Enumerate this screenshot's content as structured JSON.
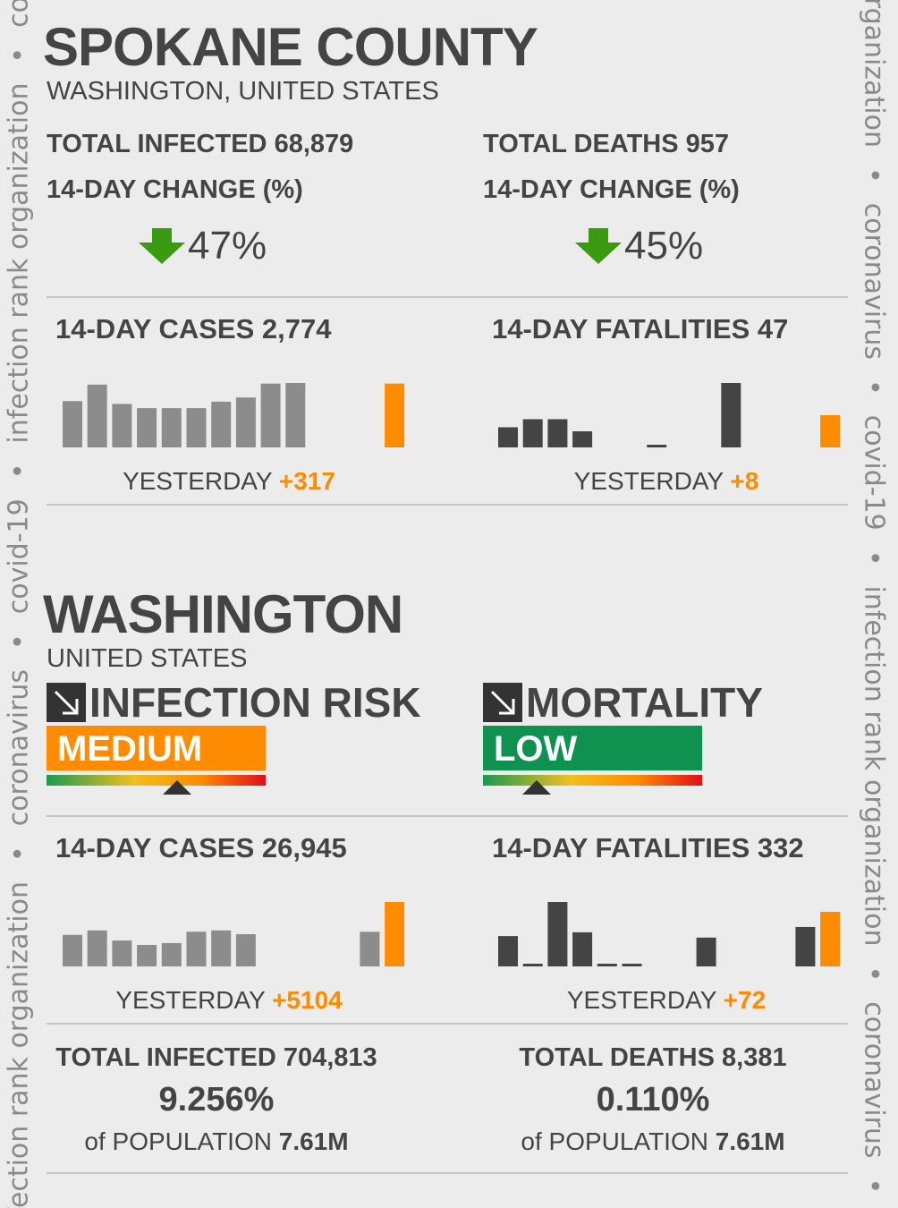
{
  "watermark": {
    "parts": [
      "covid-19",
      "coronavirus",
      "infection rank organization"
    ],
    "separator": "•"
  },
  "county": {
    "title": "SPOKANE COUNTY",
    "subtitle": "WASHINGTON, UNITED STATES",
    "infected": {
      "label": "TOTAL INFECTED",
      "value": "68,879",
      "change_label": "14-DAY CHANGE (%)",
      "change": "47%"
    },
    "deaths": {
      "label": "TOTAL DEATHS",
      "value": "957",
      "change_label": "14-DAY CHANGE (%)",
      "change": "45%"
    },
    "cases": {
      "label": "14-DAY CASES",
      "value": "2,774",
      "yesterday_label": "YESTERDAY",
      "yesterday": "+317"
    },
    "fatalities": {
      "label": "14-DAY FATALITIES",
      "value": "47",
      "yesterday_label": "YESTERDAY",
      "yesterday": "+8"
    }
  },
  "state": {
    "title": "WASHINGTON",
    "subtitle": "UNITED STATES",
    "risk": {
      "label": "INFECTION RISK",
      "level": "MEDIUM",
      "color": "#ff8c00"
    },
    "mortality": {
      "label": "MORTALITY",
      "level": "LOW",
      "color": "#0f9150"
    },
    "cases": {
      "label": "14-DAY CASES",
      "value": "26,945",
      "yesterday_label": "YESTERDAY",
      "yesterday": "+5104"
    },
    "fatalities": {
      "label": "14-DAY FATALITIES",
      "value": "332",
      "yesterday_label": "YESTERDAY",
      "yesterday": "+72"
    },
    "infected": {
      "label": "TOTAL INFECTED",
      "value": "704,813",
      "share": "9.256%",
      "population_label": "of POPULATION",
      "population": "7.61M"
    },
    "deaths": {
      "label": "TOTAL DEATHS",
      "value": "8,381",
      "share": "0.110%",
      "population_label": "of POPULATION",
      "population": "7.61M"
    }
  },
  "chart_data": [
    {
      "type": "bar",
      "values": [
        230,
        312,
        216,
        195,
        195,
        195,
        227,
        248,
        317,
        320,
        null,
        null,
        null,
        317
      ],
      "color": "#8c8c8c",
      "last_color": "#ff8c00"
    },
    {
      "type": "bar",
      "values": [
        5,
        7,
        7,
        4,
        null,
        null,
        0,
        null,
        null,
        16,
        null,
        null,
        null,
        8
      ],
      "color": "#444444",
      "last_color": "#ff8c00"
    },
    {
      "type": "bar",
      "values": [
        2500,
        2850,
        2050,
        1700,
        1850,
        2750,
        2850,
        2550,
        null,
        null,
        null,
        null,
        2741,
        5104
      ],
      "color": "#8c8c8c",
      "last_color": "#ff8c00"
    },
    {
      "type": "bar",
      "values": [
        40,
        0,
        85,
        45,
        0,
        0,
        null,
        null,
        38,
        null,
        null,
        null,
        52,
        72
      ],
      "color": "#444444",
      "last_color": "#ff8c00"
    }
  ]
}
